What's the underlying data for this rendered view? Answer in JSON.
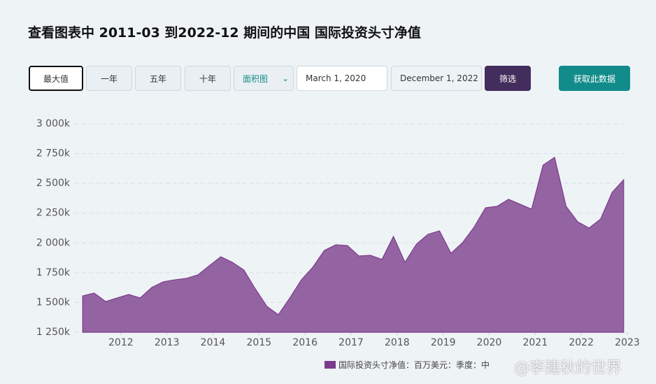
{
  "ui": {
    "title": "查看图表中 2011-03 到2022-12 期间的中国 国际投资头寸净值",
    "range_buttons": [
      "最大值",
      "一年",
      "五年",
      "十年"
    ],
    "chart_type_select": "面积图",
    "start_date": "March 1, 2020",
    "end_date": "December 1, 2022",
    "filter_button": "筛选",
    "fetch_button": "获取此数据"
  },
  "watermark": "@李建秋的世界",
  "chart_data": {
    "type": "area",
    "x": [
      2011.17,
      2011.42,
      2011.67,
      2011.92,
      2012.17,
      2012.42,
      2012.67,
      2012.92,
      2013.17,
      2013.42,
      2013.67,
      2013.92,
      2014.17,
      2014.42,
      2014.67,
      2014.92,
      2015.17,
      2015.42,
      2015.67,
      2015.92,
      2016.17,
      2016.42,
      2016.67,
      2016.92,
      2017.17,
      2017.42,
      2017.67,
      2017.92,
      2018.17,
      2018.42,
      2018.67,
      2018.92,
      2019.17,
      2019.42,
      2019.67,
      2019.92,
      2020.17,
      2020.42,
      2020.67,
      2020.92,
      2021.17,
      2021.42,
      2021.67,
      2021.92,
      2022.17,
      2022.42,
      2022.67,
      2022.92
    ],
    "series": [
      {
        "name": "国际投资头寸净值：百万美元：季度：中",
        "color": "#7b3b8b",
        "values": [
          1555,
          1579,
          1508,
          1538,
          1567,
          1538,
          1626,
          1673,
          1690,
          1702,
          1731,
          1808,
          1884,
          1837,
          1773,
          1614,
          1467,
          1397,
          1538,
          1690,
          1796,
          1937,
          1984,
          1978,
          1890,
          1896,
          1861,
          2054,
          1837,
          1990,
          2072,
          2101,
          1913,
          2002,
          2131,
          2295,
          2307,
          2366,
          2325,
          2283,
          2653,
          2718,
          2307,
          2178,
          2125,
          2201,
          2424,
          2530
        ]
      }
    ],
    "xlim": [
      2011,
      2023
    ],
    "xticks": [
      2012,
      2013,
      2014,
      2015,
      2016,
      2017,
      2018,
      2019,
      2020,
      2021,
      2022,
      2023
    ],
    "ylim": [
      1250,
      3000
    ],
    "yticks": [
      {
        "value": 1250,
        "label": "1 250k"
      },
      {
        "value": 1500,
        "label": "1 500k"
      },
      {
        "value": 1750,
        "label": "1 750k"
      },
      {
        "value": 2000,
        "label": "2 000k"
      },
      {
        "value": 2250,
        "label": "2 250k"
      },
      {
        "value": 2500,
        "label": "2 500k"
      },
      {
        "value": 2750,
        "label": "2 750k"
      },
      {
        "value": 3000,
        "label": "3 000k"
      }
    ],
    "grid": true
  }
}
